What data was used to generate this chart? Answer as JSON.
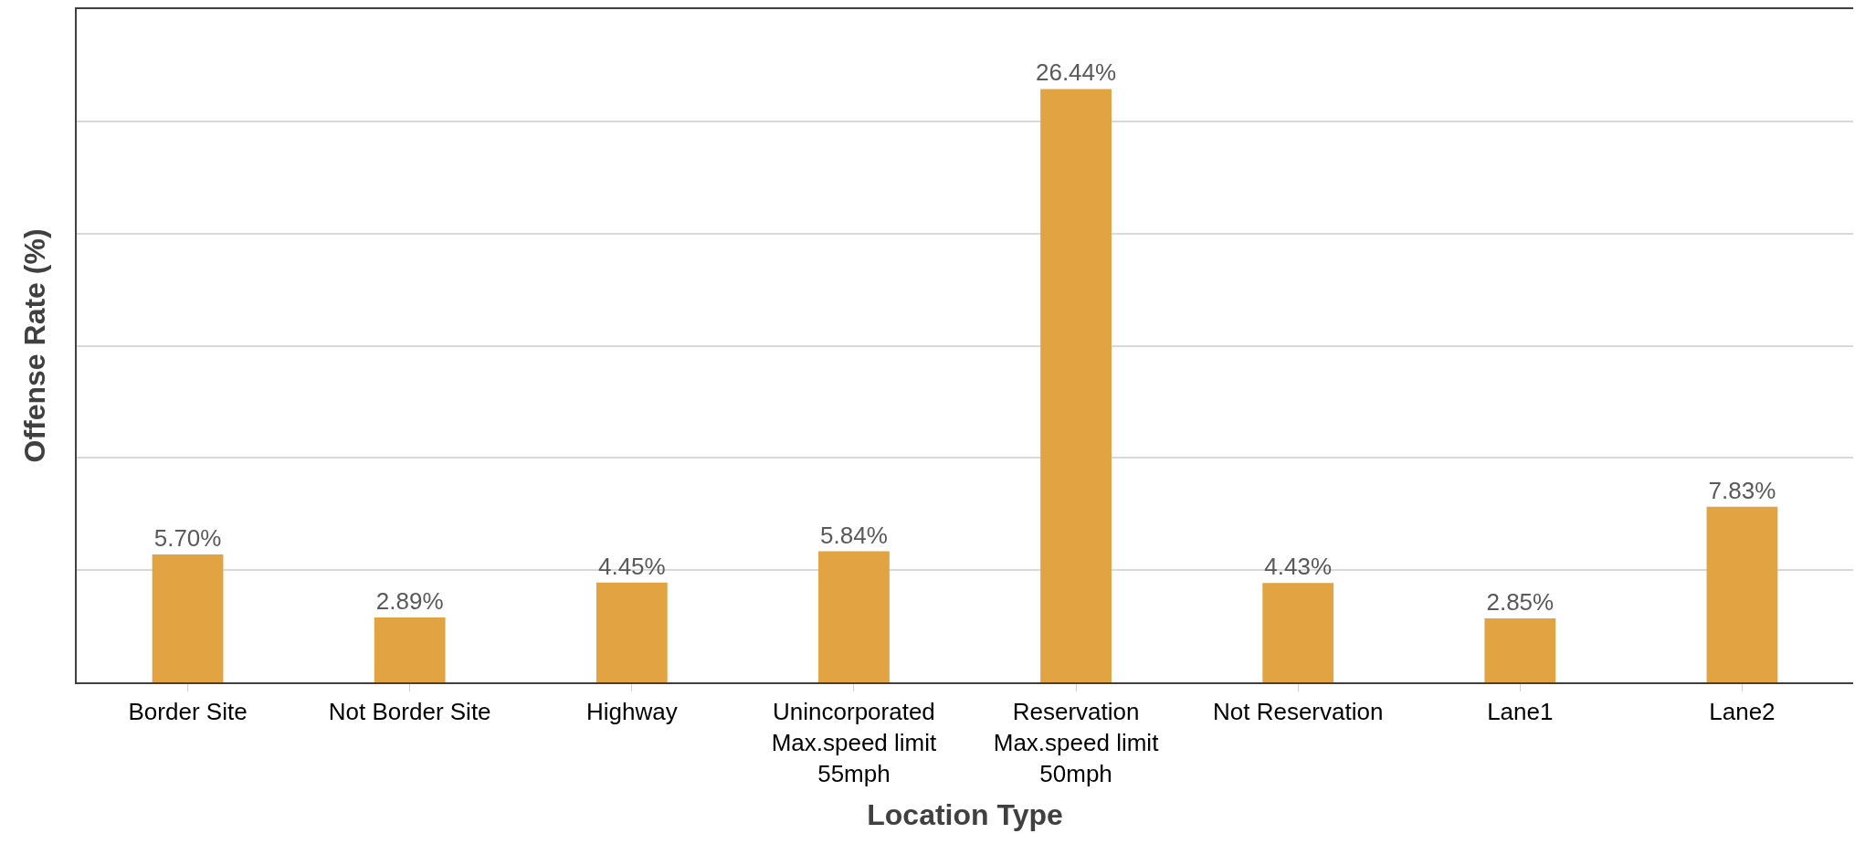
{
  "chart_data": {
    "type": "bar",
    "xlabel": "Location Type",
    "ylabel": "Offense Rate (%)",
    "categories": [
      "Border Site",
      "Not Border Site",
      "Highway",
      "Unincorporated\nMax.speed limit\n55mph",
      "Reservation\nMax.speed limit\n50mph",
      "Not Reservation",
      "Lane1",
      "Lane2"
    ],
    "values": [
      5.7,
      2.89,
      4.45,
      5.84,
      26.44,
      4.43,
      2.85,
      7.83
    ],
    "value_labels": [
      "5.70%",
      "2.89%",
      "4.45%",
      "5.84%",
      "26.44%",
      "4.43%",
      "2.85%",
      "7.83%"
    ],
    "color": "#e2a443",
    "ylim": [
      0,
      30
    ],
    "yticks": [
      {
        "value": 0,
        "label": null
      },
      {
        "value": 5,
        "label": null
      },
      {
        "value": 10,
        "label": null
      },
      {
        "value": 15,
        "label": null
      },
      {
        "value": 20,
        "label": null
      },
      {
        "value": 25,
        "label": null
      }
    ],
    "grid": "y"
  }
}
